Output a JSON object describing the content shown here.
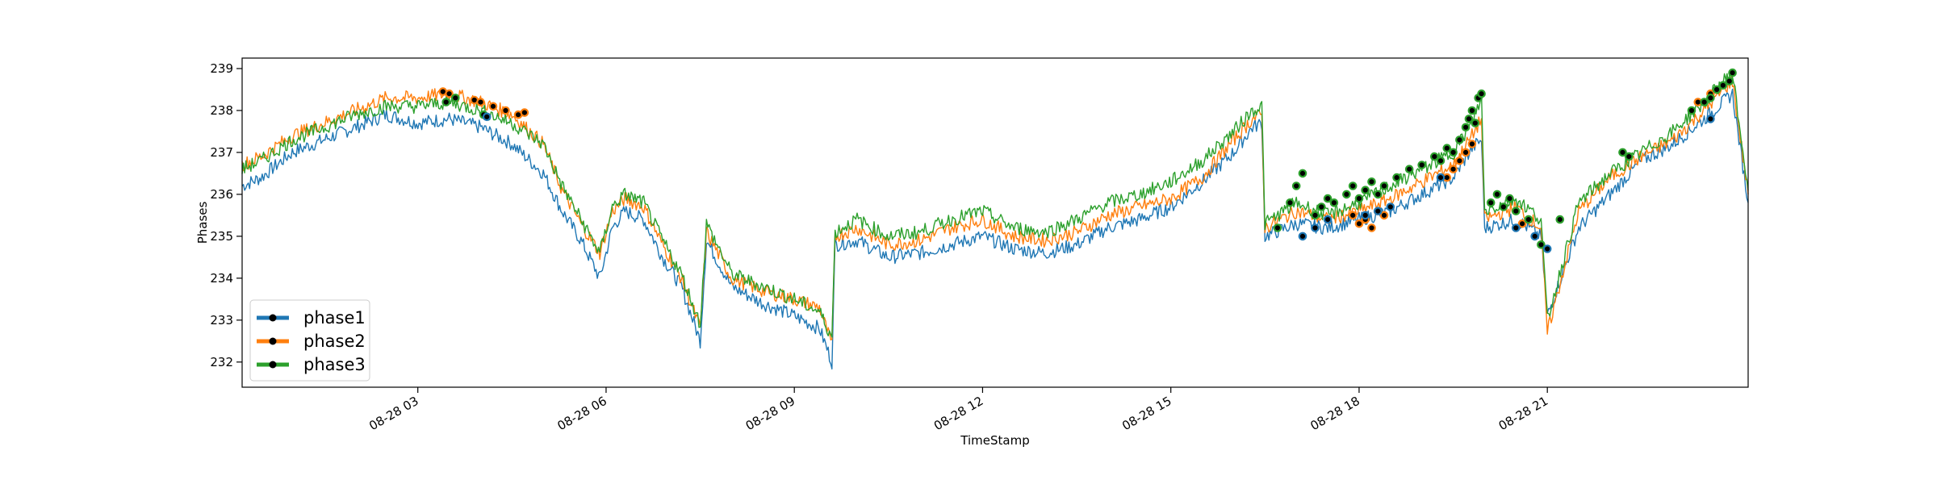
{
  "chart_data": {
    "type": "line",
    "title": "",
    "xlabel": "TimeStamp",
    "ylabel": "Phases",
    "x_unit": "hours since 08-28 00:00",
    "xlim": [
      0.2,
      24.2
    ],
    "ylim": [
      231.4,
      239.25
    ],
    "x_ticks": [
      {
        "value": 3,
        "label": "08-28 03"
      },
      {
        "value": 6,
        "label": "08-28 06"
      },
      {
        "value": 9,
        "label": "08-28 09"
      },
      {
        "value": 12,
        "label": "08-28 12"
      },
      {
        "value": 15,
        "label": "08-28 15"
      },
      {
        "value": 18,
        "label": "08-28 18"
      },
      {
        "value": 21,
        "label": "08-28 21"
      }
    ],
    "y_ticks": [
      232,
      233,
      234,
      235,
      236,
      237,
      238,
      239
    ],
    "grid": false,
    "legend": {
      "position": "lower-left"
    },
    "series": [
      {
        "name": "phase1",
        "color": "#1f77b4",
        "x": [
          0.2,
          0.5,
          1.0,
          1.5,
          2.0,
          2.5,
          3.0,
          3.5,
          4.0,
          4.5,
          5.0,
          5.3,
          5.6,
          5.9,
          6.1,
          6.3,
          6.6,
          6.9,
          7.2,
          7.5,
          7.6,
          8.0,
          8.5,
          9.0,
          9.4,
          9.6,
          9.65,
          10.0,
          10.5,
          11.0,
          11.5,
          12.0,
          12.5,
          13.0,
          13.5,
          14.0,
          14.5,
          15.0,
          15.5,
          16.0,
          16.3,
          16.45,
          16.5,
          17.0,
          17.5,
          18.0,
          18.5,
          19.0,
          19.5,
          19.8,
          19.95,
          20.0,
          20.5,
          20.9,
          21.0,
          21.5,
          22.0,
          22.5,
          23.0,
          23.5,
          23.8,
          23.95,
          24.2
        ],
        "y": [
          236.2,
          236.4,
          237.0,
          237.3,
          237.6,
          237.9,
          237.7,
          237.8,
          237.6,
          237.2,
          236.5,
          235.6,
          234.9,
          234.0,
          235.2,
          235.6,
          235.4,
          234.5,
          233.8,
          232.5,
          234.9,
          233.8,
          233.4,
          233.1,
          232.8,
          232.0,
          234.8,
          234.9,
          234.5,
          234.6,
          234.8,
          235.0,
          234.7,
          234.6,
          234.8,
          235.2,
          235.4,
          235.7,
          236.3,
          237.0,
          237.6,
          237.7,
          235.0,
          235.3,
          235.2,
          235.4,
          235.6,
          236.0,
          236.4,
          237.1,
          237.3,
          235.2,
          235.4,
          235.0,
          233.1,
          235.2,
          236.0,
          236.8,
          237.2,
          237.8,
          238.2,
          238.4,
          235.8
        ]
      },
      {
        "name": "phase2",
        "color": "#ff7f0e",
        "x": [
          0.2,
          0.5,
          1.0,
          1.5,
          2.0,
          2.5,
          3.0,
          3.5,
          4.0,
          4.5,
          5.0,
          5.3,
          5.6,
          5.9,
          6.1,
          6.3,
          6.6,
          6.9,
          7.2,
          7.5,
          7.6,
          8.0,
          8.5,
          9.0,
          9.4,
          9.6,
          9.65,
          10.0,
          10.5,
          11.0,
          11.5,
          12.0,
          12.5,
          13.0,
          13.5,
          14.0,
          14.5,
          15.0,
          15.5,
          16.0,
          16.3,
          16.45,
          16.5,
          17.0,
          17.5,
          18.0,
          18.5,
          19.0,
          19.5,
          19.8,
          19.95,
          20.0,
          20.5,
          20.9,
          21.0,
          21.5,
          22.0,
          22.5,
          23.0,
          23.5,
          23.8,
          23.95,
          24.2
        ],
        "y": [
          236.7,
          236.9,
          237.4,
          237.7,
          238.0,
          238.3,
          238.3,
          238.4,
          238.2,
          237.9,
          237.2,
          236.1,
          235.3,
          234.6,
          235.6,
          235.9,
          235.7,
          234.8,
          234.0,
          232.8,
          235.1,
          234.0,
          233.7,
          233.5,
          233.3,
          232.4,
          235.0,
          235.2,
          234.8,
          234.9,
          235.2,
          235.4,
          235.0,
          234.9,
          235.1,
          235.5,
          235.7,
          235.9,
          236.4,
          237.3,
          237.8,
          237.9,
          235.2,
          235.6,
          235.4,
          235.6,
          235.9,
          236.3,
          236.7,
          237.4,
          237.8,
          235.4,
          235.7,
          235.2,
          232.7,
          235.6,
          236.4,
          236.9,
          237.3,
          238.0,
          238.5,
          238.7,
          236.0
        ]
      },
      {
        "name": "phase3",
        "color": "#2ca02c",
        "x": [
          0.2,
          0.5,
          1.0,
          1.5,
          2.0,
          2.5,
          3.0,
          3.5,
          4.0,
          4.5,
          5.0,
          5.3,
          5.6,
          5.9,
          6.1,
          6.3,
          6.6,
          6.9,
          7.2,
          7.5,
          7.6,
          8.0,
          8.5,
          9.0,
          9.4,
          9.6,
          9.65,
          10.0,
          10.5,
          11.0,
          11.5,
          12.0,
          12.5,
          13.0,
          13.5,
          14.0,
          14.5,
          15.0,
          15.5,
          16.0,
          16.3,
          16.45,
          16.5,
          17.0,
          17.5,
          18.0,
          18.5,
          19.0,
          19.5,
          19.8,
          19.95,
          20.0,
          20.5,
          20.9,
          21.0,
          21.5,
          22.0,
          22.5,
          23.0,
          23.5,
          23.8,
          23.95,
          24.2
        ],
        "y": [
          236.6,
          236.8,
          237.3,
          237.6,
          237.9,
          238.1,
          238.1,
          238.2,
          238.0,
          237.7,
          237.2,
          236.2,
          235.4,
          234.6,
          235.7,
          236.0,
          235.8,
          234.9,
          234.1,
          232.9,
          235.3,
          234.1,
          233.8,
          233.5,
          233.2,
          232.6,
          235.1,
          235.4,
          235.0,
          235.1,
          235.4,
          235.6,
          235.2,
          235.1,
          235.4,
          235.8,
          236.0,
          236.3,
          236.8,
          237.5,
          238.0,
          238.1,
          235.3,
          235.8,
          235.5,
          235.8,
          236.2,
          236.6,
          237.0,
          237.7,
          238.3,
          235.6,
          235.9,
          235.4,
          233.0,
          235.8,
          236.5,
          237.0,
          237.5,
          238.2,
          238.7,
          238.9,
          236.1
        ]
      }
    ],
    "markers": [
      {
        "series": "phase2",
        "x": [
          3.4,
          3.5,
          3.9,
          4.0,
          4.2,
          4.4,
          4.6,
          4.7,
          17.9,
          18.0,
          18.1,
          18.2,
          18.3,
          18.4,
          19.4,
          19.5,
          19.6,
          19.7,
          19.8,
          20.6,
          23.4,
          23.6
        ],
        "y": [
          238.45,
          238.4,
          238.25,
          238.2,
          238.1,
          238.0,
          237.9,
          237.95,
          235.5,
          235.3,
          235.4,
          235.2,
          235.6,
          235.5,
          236.4,
          236.6,
          236.8,
          237.0,
          237.2,
          235.3,
          238.2,
          238.4
        ]
      },
      {
        "series": "phase3",
        "x": [
          3.45,
          3.6,
          4.05,
          16.7,
          16.9,
          17.0,
          17.1,
          17.3,
          17.4,
          17.5,
          17.6,
          17.8,
          17.9,
          18.0,
          18.1,
          18.2,
          18.3,
          18.4,
          18.6,
          18.8,
          19.0,
          19.2,
          19.3,
          19.4,
          19.5,
          19.6,
          19.7,
          19.75,
          19.8,
          19.85,
          19.9,
          19.95,
          20.1,
          20.2,
          20.3,
          20.4,
          20.5,
          20.7,
          20.9,
          21.2,
          22.2,
          22.3,
          23.3,
          23.5,
          23.6,
          23.7,
          23.8,
          23.9,
          23.95
        ],
        "y": [
          238.2,
          238.3,
          237.9,
          235.2,
          235.8,
          236.2,
          236.5,
          235.5,
          235.7,
          235.9,
          235.8,
          236.0,
          236.2,
          235.9,
          236.1,
          236.3,
          236.0,
          236.2,
          236.4,
          236.6,
          236.7,
          236.9,
          236.8,
          237.1,
          237.0,
          237.3,
          237.6,
          237.8,
          238.0,
          237.7,
          238.3,
          238.4,
          235.8,
          236.0,
          235.7,
          235.9,
          235.6,
          235.4,
          234.8,
          235.4,
          237.0,
          236.9,
          238.0,
          238.2,
          238.3,
          238.5,
          238.6,
          238.7,
          238.9
        ]
      },
      {
        "series": "phase1",
        "x": [
          4.1,
          17.1,
          17.3,
          17.5,
          18.1,
          18.3,
          18.5,
          19.3,
          20.5,
          20.8,
          21.0,
          23.6
        ],
        "y": [
          237.85,
          235.0,
          235.2,
          235.4,
          235.5,
          235.6,
          235.7,
          236.4,
          235.2,
          235.0,
          234.7,
          237.8
        ]
      }
    ]
  }
}
